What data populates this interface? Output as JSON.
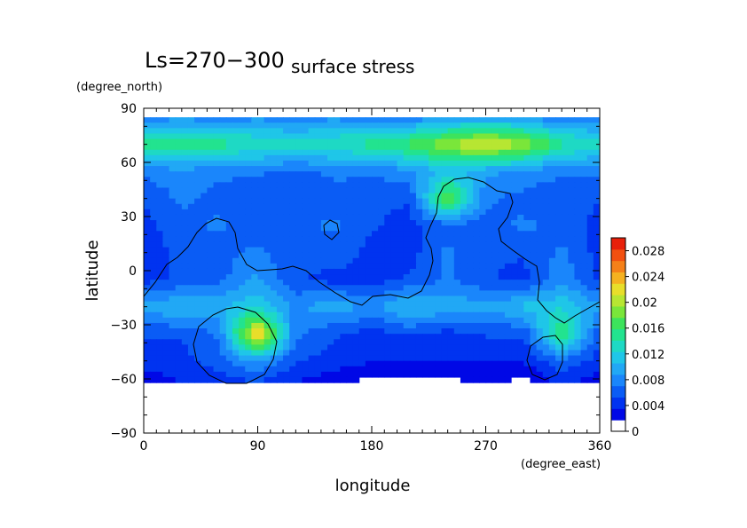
{
  "chart_data": {
    "type": "heatmap",
    "title_main": "Ls=270−300",
    "title_sub": "surface stress",
    "xlabel": "longitude",
    "xunit": "(degree_east)",
    "ylabel": "latitude",
    "yunit": "(degree_north)",
    "xlim": [
      0,
      360
    ],
    "ylim": [
      -90,
      90
    ],
    "x_ticks": [
      0,
      90,
      180,
      270,
      360
    ],
    "x_tick_labels": [
      "0",
      "90",
      "180",
      "270",
      "360"
    ],
    "y_ticks": [
      -90,
      -60,
      -30,
      0,
      30,
      60,
      90
    ],
    "y_tick_labels": [
      "−90",
      "−60",
      "−30",
      "0",
      "30",
      "60",
      "90"
    ],
    "colorbar": {
      "min": 0,
      "max": 0.03,
      "ticks": [
        0,
        0.004,
        0.008,
        0.012,
        0.016,
        0.02,
        0.024,
        0.028
      ],
      "tick_labels": [
        "0",
        "0.004",
        "0.008",
        "0.012",
        "0.016",
        "0.02",
        "0.024",
        "0.028"
      ],
      "colors": [
        "#ffffff",
        "#0008e6",
        "#0033f0",
        "#0a5cf5",
        "#1a86fb",
        "#21a8f5",
        "#1fc6e8",
        "#1ed9c4",
        "#22e38f",
        "#3de35c",
        "#7ae63a",
        "#b7e632",
        "#e8de2a",
        "#f5b120",
        "#f58018",
        "#f25010",
        "#e8200a"
      ]
    },
    "data_grid_note": "",
    "grid": {
      "lon": [
        0,
        30,
        60,
        90,
        120,
        150,
        180,
        210,
        240,
        270,
        300,
        330,
        360
      ],
      "lat": [
        85,
        70,
        55,
        40,
        25,
        10,
        -5,
        -20,
        -35,
        -50,
        -60
      ],
      "values": [
        [
          0.006,
          0.007,
          0.006,
          0.007,
          0.006,
          0.007,
          0.006,
          0.006,
          0.007,
          0.008,
          0.007,
          0.006,
          0.006
        ],
        [
          0.014,
          0.015,
          0.014,
          0.013,
          0.012,
          0.013,
          0.014,
          0.016,
          0.019,
          0.022,
          0.019,
          0.014,
          0.012
        ],
        [
          0.006,
          0.007,
          0.006,
          0.006,
          0.005,
          0.006,
          0.006,
          0.007,
          0.01,
          0.008,
          0.007,
          0.006,
          0.006
        ],
        [
          0.004,
          0.006,
          0.005,
          0.004,
          0.004,
          0.005,
          0.004,
          0.004,
          0.018,
          0.006,
          0.005,
          0.004,
          0.004
        ],
        [
          0.003,
          0.005,
          0.006,
          0.004,
          0.005,
          0.006,
          0.004,
          0.003,
          0.005,
          0.005,
          0.006,
          0.005,
          0.003
        ],
        [
          0.003,
          0.004,
          0.005,
          0.006,
          0.004,
          0.005,
          0.003,
          0.003,
          0.006,
          0.004,
          0.004,
          0.006,
          0.003
        ],
        [
          0.003,
          0.004,
          0.005,
          0.008,
          0.004,
          0.003,
          0.003,
          0.004,
          0.006,
          0.004,
          0.003,
          0.007,
          0.003
        ],
        [
          0.008,
          0.01,
          0.009,
          0.011,
          0.007,
          0.009,
          0.007,
          0.01,
          0.009,
          0.008,
          0.01,
          0.011,
          0.008
        ],
        [
          0.004,
          0.004,
          0.006,
          0.024,
          0.006,
          0.004,
          0.003,
          0.004,
          0.003,
          0.004,
          0.004,
          0.016,
          0.004
        ],
        [
          0.003,
          0.003,
          0.005,
          0.008,
          0.004,
          0.003,
          0.002,
          0.002,
          0.002,
          0.002,
          0.002,
          0.005,
          0.003
        ],
        [
          0.001,
          0.002,
          0.003,
          0.004,
          0.002,
          0.001,
          0.0,
          0.0,
          0.0,
          0.001,
          0.0,
          0.003,
          0.001
        ]
      ]
    }
  }
}
